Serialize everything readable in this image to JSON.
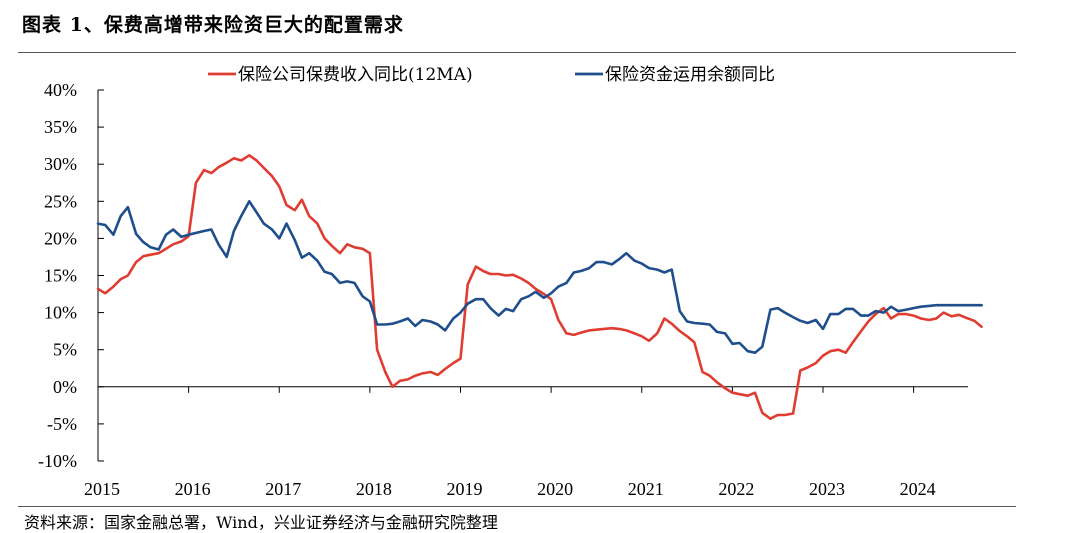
{
  "figure": {
    "title": "图表 1、保费高增带来险资巨大的配置需求",
    "source": "资料来源：国家金融总署，Wind，兴业证券经济与金融研究院整理"
  },
  "chart_data": {
    "type": "line",
    "title": "图表 1、保费高增带来险资巨大的配置需求",
    "xlabel": "",
    "ylabel": "",
    "ylim": [
      -10,
      40
    ],
    "ytick_step": 5,
    "xlim": [
      2015,
      2024.6
    ],
    "x_ticks": [
      2015,
      2016,
      2017,
      2018,
      2019,
      2020,
      2021,
      2022,
      2023,
      2024
    ],
    "x_tick_labels": [
      "2015",
      "2016",
      "2017",
      "2018",
      "2019",
      "2020",
      "2021",
      "2022",
      "2023",
      "2024"
    ],
    "grid": false,
    "legend_position": "top",
    "series": [
      {
        "name": "保险公司保费收入同比(12MA)",
        "color": "#e03c31",
        "points": [
          [
            2015.0,
            13.2
          ],
          [
            2015.08,
            12.6
          ],
          [
            2015.17,
            13.5
          ],
          [
            2015.25,
            14.5
          ],
          [
            2015.33,
            15.0
          ],
          [
            2015.42,
            16.8
          ],
          [
            2015.5,
            17.6
          ],
          [
            2015.58,
            17.8
          ],
          [
            2015.67,
            18.0
          ],
          [
            2015.75,
            18.6
          ],
          [
            2015.83,
            19.2
          ],
          [
            2015.92,
            19.6
          ],
          [
            2016.0,
            20.3
          ],
          [
            2016.08,
            27.5
          ],
          [
            2016.17,
            29.2
          ],
          [
            2016.25,
            28.8
          ],
          [
            2016.33,
            29.6
          ],
          [
            2016.42,
            30.2
          ],
          [
            2016.5,
            30.8
          ],
          [
            2016.58,
            30.5
          ],
          [
            2016.67,
            31.2
          ],
          [
            2016.75,
            30.5
          ],
          [
            2016.83,
            29.5
          ],
          [
            2016.92,
            28.4
          ],
          [
            2017.0,
            27.0
          ],
          [
            2017.08,
            24.5
          ],
          [
            2017.17,
            23.8
          ],
          [
            2017.25,
            25.2
          ],
          [
            2017.33,
            23.0
          ],
          [
            2017.42,
            22.0
          ],
          [
            2017.5,
            20.0
          ],
          [
            2017.58,
            19.0
          ],
          [
            2017.67,
            18.0
          ],
          [
            2017.75,
            19.2
          ],
          [
            2017.83,
            18.8
          ],
          [
            2017.92,
            18.6
          ],
          [
            2018.0,
            18.0
          ],
          [
            2018.08,
            5.0
          ],
          [
            2018.17,
            2.0
          ],
          [
            2018.25,
            0.0
          ],
          [
            2018.33,
            0.8
          ],
          [
            2018.42,
            1.0
          ],
          [
            2018.5,
            1.5
          ],
          [
            2018.58,
            1.8
          ],
          [
            2018.67,
            2.0
          ],
          [
            2018.75,
            1.6
          ],
          [
            2018.83,
            2.4
          ],
          [
            2018.92,
            3.2
          ],
          [
            2019.0,
            3.8
          ],
          [
            2019.08,
            13.8
          ],
          [
            2019.17,
            16.2
          ],
          [
            2019.25,
            15.6
          ],
          [
            2019.33,
            15.2
          ],
          [
            2019.42,
            15.2
          ],
          [
            2019.5,
            15.0
          ],
          [
            2019.58,
            15.1
          ],
          [
            2019.67,
            14.6
          ],
          [
            2019.75,
            14.0
          ],
          [
            2019.83,
            13.2
          ],
          [
            2019.92,
            12.5
          ],
          [
            2020.0,
            11.8
          ],
          [
            2020.08,
            9.0
          ],
          [
            2020.17,
            7.2
          ],
          [
            2020.25,
            7.0
          ],
          [
            2020.33,
            7.3
          ],
          [
            2020.42,
            7.6
          ],
          [
            2020.5,
            7.7
          ],
          [
            2020.58,
            7.8
          ],
          [
            2020.67,
            7.9
          ],
          [
            2020.75,
            7.8
          ],
          [
            2020.83,
            7.6
          ],
          [
            2020.92,
            7.2
          ],
          [
            2021.0,
            6.8
          ],
          [
            2021.08,
            6.2
          ],
          [
            2021.17,
            7.2
          ],
          [
            2021.25,
            9.2
          ],
          [
            2021.33,
            8.5
          ],
          [
            2021.42,
            7.5
          ],
          [
            2021.5,
            6.8
          ],
          [
            2021.58,
            6.0
          ],
          [
            2021.67,
            2.0
          ],
          [
            2021.75,
            1.5
          ],
          [
            2021.83,
            0.6
          ],
          [
            2021.92,
            -0.2
          ],
          [
            2022.0,
            -0.8
          ],
          [
            2022.08,
            -1.0
          ],
          [
            2022.17,
            -1.2
          ],
          [
            2022.25,
            -0.8
          ],
          [
            2022.33,
            -3.5
          ],
          [
            2022.42,
            -4.3
          ],
          [
            2022.5,
            -3.8
          ],
          [
            2022.58,
            -3.8
          ],
          [
            2022.67,
            -3.6
          ],
          [
            2022.75,
            2.2
          ],
          [
            2022.83,
            2.6
          ],
          [
            2022.92,
            3.2
          ],
          [
            2023.0,
            4.2
          ],
          [
            2023.08,
            4.8
          ],
          [
            2023.17,
            5.0
          ],
          [
            2023.25,
            4.6
          ],
          [
            2023.33,
            6.0
          ],
          [
            2023.42,
            7.5
          ],
          [
            2023.5,
            8.8
          ],
          [
            2023.58,
            9.8
          ],
          [
            2023.67,
            10.6
          ],
          [
            2023.75,
            9.2
          ],
          [
            2023.83,
            9.8
          ],
          [
            2023.92,
            9.8
          ],
          [
            2024.0,
            9.6
          ],
          [
            2024.08,
            9.2
          ],
          [
            2024.17,
            9.0
          ],
          [
            2024.25,
            9.2
          ],
          [
            2024.33,
            10.0
          ],
          [
            2024.42,
            9.5
          ],
          [
            2024.5,
            9.7
          ],
          [
            2024.58,
            9.3
          ],
          [
            2024.67,
            8.9
          ],
          [
            2024.75,
            8.1
          ]
        ]
      },
      {
        "name": "保险资金运用余额同比",
        "color": "#1f4e8c",
        "points": [
          [
            2015.0,
            22.0
          ],
          [
            2015.08,
            21.8
          ],
          [
            2015.17,
            20.5
          ],
          [
            2015.25,
            23.0
          ],
          [
            2015.33,
            24.2
          ],
          [
            2015.42,
            20.6
          ],
          [
            2015.5,
            19.5
          ],
          [
            2015.58,
            18.8
          ],
          [
            2015.67,
            18.5
          ],
          [
            2015.75,
            20.5
          ],
          [
            2015.83,
            21.2
          ],
          [
            2015.92,
            20.2
          ],
          [
            2016.0,
            20.5
          ],
          [
            2016.17,
            21.0
          ],
          [
            2016.25,
            21.2
          ],
          [
            2016.33,
            19.2
          ],
          [
            2016.42,
            17.5
          ],
          [
            2016.5,
            21.0
          ],
          [
            2016.58,
            23.0
          ],
          [
            2016.67,
            25.0
          ],
          [
            2016.75,
            23.5
          ],
          [
            2016.83,
            22.0
          ],
          [
            2016.92,
            21.2
          ],
          [
            2017.0,
            20.0
          ],
          [
            2017.08,
            22.0
          ],
          [
            2017.17,
            19.8
          ],
          [
            2017.25,
            17.4
          ],
          [
            2017.33,
            18.0
          ],
          [
            2017.42,
            17.0
          ],
          [
            2017.5,
            15.5
          ],
          [
            2017.58,
            15.2
          ],
          [
            2017.67,
            14.0
          ],
          [
            2017.75,
            14.2
          ],
          [
            2017.83,
            14.0
          ],
          [
            2017.92,
            12.2
          ],
          [
            2018.0,
            11.5
          ],
          [
            2018.08,
            8.4
          ],
          [
            2018.17,
            8.4
          ],
          [
            2018.25,
            8.5
          ],
          [
            2018.33,
            8.8
          ],
          [
            2018.42,
            9.2
          ],
          [
            2018.5,
            8.2
          ],
          [
            2018.58,
            9.0
          ],
          [
            2018.67,
            8.8
          ],
          [
            2018.75,
            8.4
          ],
          [
            2018.83,
            7.6
          ],
          [
            2018.92,
            9.2
          ],
          [
            2019.0,
            10.0
          ],
          [
            2019.08,
            11.2
          ],
          [
            2019.17,
            11.8
          ],
          [
            2019.25,
            11.8
          ],
          [
            2019.33,
            10.6
          ],
          [
            2019.42,
            9.6
          ],
          [
            2019.5,
            10.5
          ],
          [
            2019.58,
            10.2
          ],
          [
            2019.67,
            11.8
          ],
          [
            2019.75,
            12.2
          ],
          [
            2019.83,
            12.8
          ],
          [
            2019.92,
            12.0
          ],
          [
            2020.0,
            12.6
          ],
          [
            2020.08,
            13.5
          ],
          [
            2020.17,
            14.0
          ],
          [
            2020.25,
            15.4
          ],
          [
            2020.33,
            15.6
          ],
          [
            2020.42,
            16.0
          ],
          [
            2020.5,
            16.8
          ],
          [
            2020.58,
            16.8
          ],
          [
            2020.67,
            16.5
          ],
          [
            2020.75,
            17.2
          ],
          [
            2020.83,
            18.0
          ],
          [
            2020.92,
            17.0
          ],
          [
            2021.0,
            16.6
          ],
          [
            2021.08,
            16.0
          ],
          [
            2021.17,
            15.8
          ],
          [
            2021.25,
            15.4
          ],
          [
            2021.33,
            15.8
          ],
          [
            2021.42,
            10.2
          ],
          [
            2021.5,
            8.8
          ],
          [
            2021.58,
            8.6
          ],
          [
            2021.67,
            8.5
          ],
          [
            2021.75,
            8.4
          ],
          [
            2021.83,
            7.4
          ],
          [
            2021.92,
            7.2
          ],
          [
            2022.0,
            5.8
          ],
          [
            2022.08,
            5.9
          ],
          [
            2022.17,
            4.8
          ],
          [
            2022.25,
            4.6
          ],
          [
            2022.33,
            5.4
          ],
          [
            2022.42,
            10.4
          ],
          [
            2022.5,
            10.6
          ],
          [
            2022.58,
            10.0
          ],
          [
            2022.67,
            9.4
          ],
          [
            2022.75,
            8.9
          ],
          [
            2022.83,
            8.6
          ],
          [
            2022.92,
            9.0
          ],
          [
            2023.0,
            7.8
          ],
          [
            2023.08,
            9.8
          ],
          [
            2023.17,
            9.8
          ],
          [
            2023.25,
            10.5
          ],
          [
            2023.33,
            10.5
          ],
          [
            2023.42,
            9.6
          ],
          [
            2023.5,
            9.6
          ],
          [
            2023.58,
            10.2
          ],
          [
            2023.67,
            10.0
          ],
          [
            2023.75,
            10.8
          ],
          [
            2023.83,
            10.2
          ],
          [
            2023.92,
            10.4
          ],
          [
            2024.0,
            10.6
          ],
          [
            2024.08,
            10.8
          ],
          [
            2024.17,
            10.9
          ],
          [
            2024.25,
            11.0
          ],
          [
            2024.33,
            11.0
          ],
          [
            2024.42,
            11.0
          ],
          [
            2024.5,
            11.0
          ],
          [
            2024.58,
            11.0
          ],
          [
            2024.67,
            11.0
          ],
          [
            2024.75,
            11.0
          ]
        ]
      }
    ]
  }
}
